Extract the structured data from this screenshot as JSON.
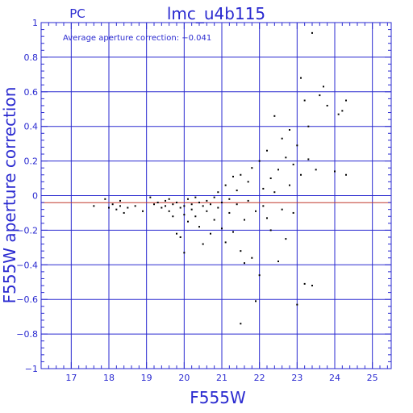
{
  "chart_data": {
    "type": "scatter",
    "title_left": "PC",
    "title": "lmc_u4b115",
    "xlabel": "F555W",
    "ylabel": "F555W aperture correction",
    "annotation": "Average aperture correction: −0.041",
    "xlim": [
      16.2,
      25.5
    ],
    "ylim": [
      -1,
      1
    ],
    "x_ticks": [
      17,
      18,
      19,
      20,
      21,
      22,
      23,
      24,
      25
    ],
    "y_ticks": [
      -1,
      -0.8,
      -0.6,
      -0.4,
      -0.2,
      0,
      0.2,
      0.4,
      0.6,
      0.8,
      1
    ],
    "y_tick_labels": [
      "−1",
      "−0.8",
      "−0.6",
      "−0.4",
      "−0.2",
      "0",
      "0.2",
      "0.4",
      "0.6",
      "0.8",
      "1"
    ],
    "grid": true,
    "reference_lines": [
      {
        "y": 0,
        "color": "#2a2ad0"
      },
      {
        "y": -0.041,
        "color": "#c0392b"
      }
    ],
    "point_color": "#000000",
    "axis_color": "#2a2ad0",
    "points": [
      [
        17.6,
        -0.06
      ],
      [
        17.9,
        -0.02
      ],
      [
        18.0,
        -0.07
      ],
      [
        18.1,
        -0.05
      ],
      [
        18.2,
        -0.08
      ],
      [
        18.3,
        -0.03
      ],
      [
        18.3,
        -0.06
      ],
      [
        18.4,
        -0.1
      ],
      [
        18.5,
        -0.07
      ],
      [
        18.7,
        -0.06
      ],
      [
        18.9,
        -0.09
      ],
      [
        19.1,
        -0.01
      ],
      [
        19.2,
        -0.05
      ],
      [
        19.3,
        -0.04
      ],
      [
        19.4,
        -0.07
      ],
      [
        19.5,
        -0.03
      ],
      [
        19.5,
        -0.06
      ],
      [
        19.6,
        -0.09
      ],
      [
        19.6,
        -0.02
      ],
      [
        19.7,
        -0.05
      ],
      [
        19.7,
        -0.12
      ],
      [
        19.8,
        -0.04
      ],
      [
        19.8,
        -0.22
      ],
      [
        19.9,
        -0.07
      ],
      [
        19.9,
        -0.24
      ],
      [
        20.0,
        -0.06
      ],
      [
        20.0,
        -0.11
      ],
      [
        20.0,
        -0.33
      ],
      [
        20.1,
        -0.02
      ],
      [
        20.1,
        -0.15
      ],
      [
        20.2,
        -0.05
      ],
      [
        20.2,
        -0.08
      ],
      [
        20.3,
        -0.01
      ],
      [
        20.3,
        -0.12
      ],
      [
        20.4,
        -0.04
      ],
      [
        20.4,
        -0.18
      ],
      [
        20.5,
        -0.06
      ],
      [
        20.5,
        -0.28
      ],
      [
        20.6,
        -0.03
      ],
      [
        20.6,
        -0.09
      ],
      [
        20.7,
        -0.05
      ],
      [
        20.7,
        -0.22
      ],
      [
        20.8,
        -0.01
      ],
      [
        20.8,
        -0.14
      ],
      [
        20.9,
        -0.07
      ],
      [
        20.9,
        0.02
      ],
      [
        21.0,
        -0.04
      ],
      [
        21.0,
        -0.19
      ],
      [
        21.1,
        0.06
      ],
      [
        21.1,
        -0.27
      ],
      [
        21.2,
        -0.02
      ],
      [
        21.2,
        -0.1
      ],
      [
        21.3,
        0.11
      ],
      [
        21.3,
        -0.21
      ],
      [
        21.4,
        -0.05
      ],
      [
        21.4,
        0.03
      ],
      [
        21.5,
        -0.32
      ],
      [
        21.5,
        0.12
      ],
      [
        21.6,
        -0.14
      ],
      [
        21.6,
        -0.39
      ],
      [
        21.7,
        0.08
      ],
      [
        21.7,
        -0.03
      ],
      [
        21.8,
        -0.36
      ],
      [
        21.8,
        0.16
      ],
      [
        21.9,
        -0.61
      ],
      [
        21.9,
        -0.09
      ],
      [
        22.0,
        -0.46
      ],
      [
        22.0,
        0.2
      ],
      [
        22.1,
        -0.06
      ],
      [
        22.1,
        0.04
      ],
      [
        22.2,
        -0.13
      ],
      [
        22.2,
        0.26
      ],
      [
        21.5,
        -0.74
      ],
      [
        22.3,
        0.1
      ],
      [
        22.3,
        -0.2
      ],
      [
        22.4,
        0.46
      ],
      [
        22.4,
        0.02
      ],
      [
        22.5,
        -0.38
      ],
      [
        22.5,
        0.15
      ],
      [
        22.6,
        -0.08
      ],
      [
        22.6,
        0.33
      ],
      [
        22.7,
        0.22
      ],
      [
        22.7,
        -0.25
      ],
      [
        22.8,
        0.06
      ],
      [
        22.8,
        0.38
      ],
      [
        22.9,
        -0.1
      ],
      [
        22.9,
        0.18
      ],
      [
        23.0,
        0.29
      ],
      [
        23.0,
        -0.63
      ],
      [
        23.1,
        0.68
      ],
      [
        23.1,
        0.12
      ],
      [
        23.2,
        0.55
      ],
      [
        23.2,
        -0.51
      ],
      [
        23.3,
        0.4
      ],
      [
        23.3,
        0.21
      ],
      [
        23.4,
        0.94
      ],
      [
        23.4,
        -0.52
      ],
      [
        23.5,
        0.15
      ],
      [
        23.6,
        0.58
      ],
      [
        23.7,
        0.63
      ],
      [
        23.8,
        0.52
      ],
      [
        24.0,
        0.14
      ],
      [
        24.1,
        0.47
      ],
      [
        24.2,
        0.49
      ],
      [
        24.3,
        0.55
      ],
      [
        24.3,
        0.12
      ]
    ]
  }
}
